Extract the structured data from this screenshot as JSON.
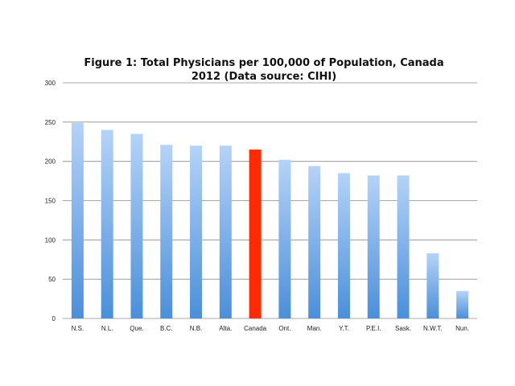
{
  "chart_data": {
    "type": "bar",
    "title": "Figure 1: Total Physicians per 100,000 of Population, Canada",
    "subtitle": "2012 (Data source: CIHI)",
    "xlabel": "",
    "ylabel": "",
    "categories": [
      "N.S.",
      "N.L.",
      "Que.",
      "B.C.",
      "N.B.",
      "Alta.",
      "Canada",
      "Ont.",
      "Man.",
      "Y.T.",
      "P.E.I.",
      "Sask.",
      "N.W.T.",
      "Nun."
    ],
    "values": [
      249,
      240,
      235,
      221,
      220,
      220,
      215,
      202,
      194,
      185,
      182,
      182,
      83,
      35
    ],
    "highlight_category": "Canada",
    "ylim": [
      0,
      300
    ],
    "yticks": [
      0,
      50,
      100,
      150,
      200,
      250,
      300
    ],
    "grid": true,
    "legend": "none",
    "colors": {
      "bar_top": "#b4d3f8",
      "bar_bottom": "#4a8fdb",
      "highlight": "#ff2a00",
      "grid": "#8c8c8c"
    }
  }
}
